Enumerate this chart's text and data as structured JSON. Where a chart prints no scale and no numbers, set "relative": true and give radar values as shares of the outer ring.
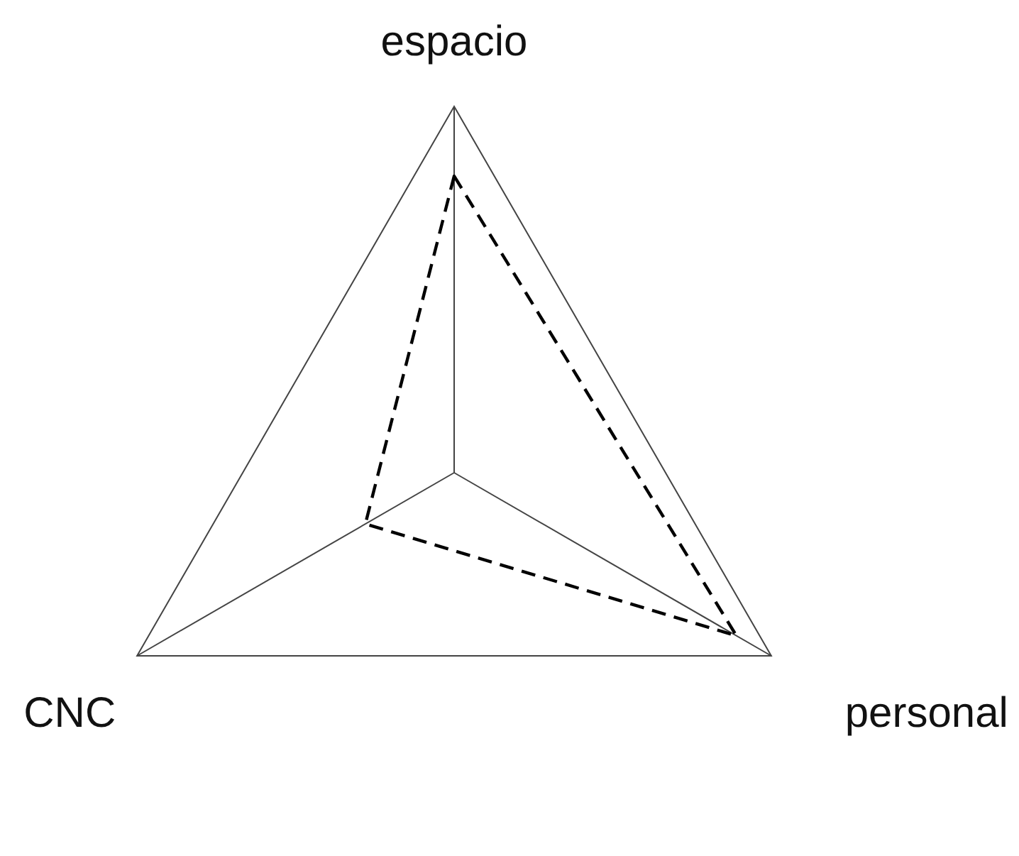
{
  "chart_data": {
    "type": "radar",
    "relative": true,
    "categories": [
      "espacio",
      "personal",
      "CNC"
    ],
    "grid": true,
    "line_style": "dashed",
    "series": [
      {
        "color": "#000000",
        "values": [
          0.81,
          0.89,
          0.28
        ]
      }
    ]
  }
}
